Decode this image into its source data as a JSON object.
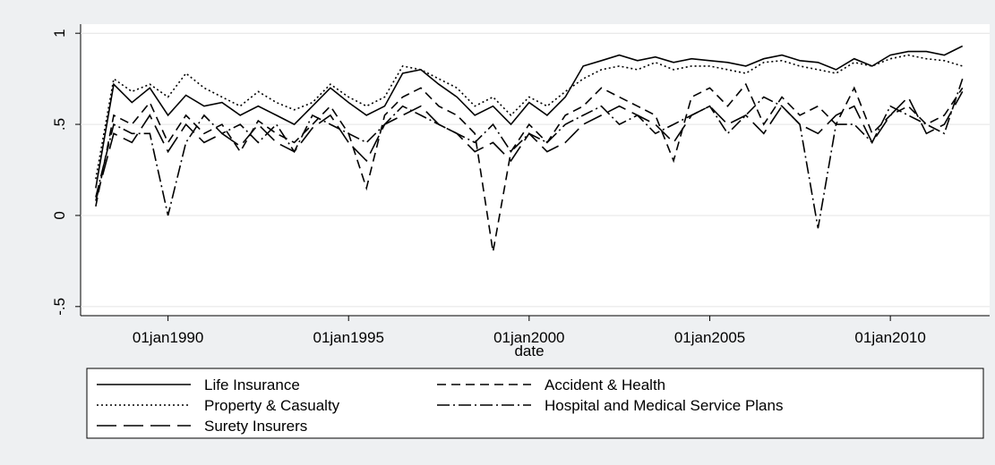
{
  "chart_data": {
    "type": "line",
    "xlabel": "date",
    "x": [
      "1988-01-01",
      "1988-07-01",
      "1989-01-01",
      "1989-07-01",
      "1990-01-01",
      "1990-07-01",
      "1991-01-01",
      "1991-07-01",
      "1992-01-01",
      "1992-07-01",
      "1993-01-01",
      "1993-07-01",
      "1994-01-01",
      "1994-07-01",
      "1995-01-01",
      "1995-07-01",
      "1996-01-01",
      "1996-07-01",
      "1997-01-01",
      "1997-07-01",
      "1998-01-01",
      "1998-07-01",
      "1999-01-01",
      "1999-07-01",
      "2000-01-01",
      "2000-07-01",
      "2001-01-01",
      "2001-07-01",
      "2002-01-01",
      "2002-07-01",
      "2003-01-01",
      "2003-07-01",
      "2004-01-01",
      "2004-07-01",
      "2005-01-01",
      "2005-07-01",
      "2006-01-01",
      "2006-07-01",
      "2007-01-01",
      "2007-07-01",
      "2008-01-01",
      "2008-07-01",
      "2009-01-01",
      "2009-07-01",
      "2010-01-01",
      "2010-07-01",
      "2011-01-01",
      "2011-07-01",
      "2012-01-01"
    ],
    "series": [
      {
        "name": "Life Insurance",
        "color": "#000000",
        "dash": "none",
        "values": [
          0.15,
          0.72,
          0.62,
          0.7,
          0.55,
          0.66,
          0.6,
          0.62,
          0.55,
          0.6,
          0.55,
          0.5,
          0.6,
          0.7,
          0.62,
          0.55,
          0.6,
          0.78,
          0.8,
          0.72,
          0.65,
          0.55,
          0.6,
          0.5,
          0.62,
          0.55,
          0.65,
          0.82,
          0.85,
          0.88,
          0.85,
          0.87,
          0.84,
          0.86,
          0.85,
          0.84,
          0.82,
          0.86,
          0.88,
          0.85,
          0.84,
          0.8,
          0.86,
          0.82,
          0.88,
          0.9,
          0.9,
          0.88,
          0.93
        ]
      },
      {
        "name": "Accident & Health",
        "color": "#000000",
        "dash": "10,6",
        "values": [
          0.05,
          0.55,
          0.5,
          0.62,
          0.4,
          0.55,
          0.45,
          0.5,
          0.35,
          0.52,
          0.45,
          0.4,
          0.5,
          0.6,
          0.45,
          0.15,
          0.55,
          0.65,
          0.7,
          0.6,
          0.55,
          0.45,
          -0.2,
          0.35,
          0.5,
          0.4,
          0.55,
          0.6,
          0.7,
          0.65,
          0.6,
          0.55,
          0.3,
          0.65,
          0.7,
          0.6,
          0.72,
          0.5,
          0.65,
          0.55,
          0.6,
          0.5,
          0.7,
          0.45,
          0.55,
          0.6,
          0.5,
          0.55,
          0.7
        ]
      },
      {
        "name": "Property & Casualty",
        "color": "#000000",
        "dash": "2,3",
        "values": [
          0.2,
          0.75,
          0.68,
          0.72,
          0.65,
          0.78,
          0.7,
          0.65,
          0.6,
          0.68,
          0.62,
          0.58,
          0.62,
          0.72,
          0.65,
          0.6,
          0.65,
          0.82,
          0.8,
          0.75,
          0.7,
          0.6,
          0.65,
          0.55,
          0.65,
          0.6,
          0.68,
          0.75,
          0.8,
          0.82,
          0.8,
          0.84,
          0.8,
          0.82,
          0.82,
          0.8,
          0.78,
          0.84,
          0.85,
          0.82,
          0.8,
          0.78,
          0.84,
          0.82,
          0.86,
          0.88,
          0.86,
          0.85,
          0.82
        ]
      },
      {
        "name": "Hospital and Medical Service Plans",
        "color": "#000000",
        "dash": "14,4,2,4",
        "values": [
          0.1,
          0.5,
          0.45,
          0.45,
          0.0,
          0.4,
          0.55,
          0.45,
          0.5,
          0.4,
          0.5,
          0.35,
          0.55,
          0.5,
          0.45,
          0.4,
          0.5,
          0.6,
          0.55,
          0.5,
          0.45,
          0.4,
          0.5,
          0.35,
          0.45,
          0.4,
          0.5,
          0.55,
          0.6,
          0.5,
          0.55,
          0.45,
          0.5,
          0.55,
          0.6,
          0.45,
          0.55,
          0.65,
          0.6,
          0.5,
          -0.07,
          0.5,
          0.5,
          0.4,
          0.6,
          0.55,
          0.5,
          0.45,
          0.75
        ]
      },
      {
        "name": "Surety Insurers",
        "color": "#000000",
        "dash": "22,8",
        "values": [
          0.08,
          0.45,
          0.4,
          0.55,
          0.35,
          0.5,
          0.4,
          0.45,
          0.38,
          0.5,
          0.4,
          0.35,
          0.48,
          0.55,
          0.4,
          0.3,
          0.5,
          0.55,
          0.6,
          0.5,
          0.45,
          0.35,
          0.4,
          0.3,
          0.45,
          0.35,
          0.4,
          0.5,
          0.55,
          0.6,
          0.55,
          0.5,
          0.4,
          0.55,
          0.6,
          0.5,
          0.55,
          0.45,
          0.6,
          0.5,
          0.45,
          0.55,
          0.6,
          0.4,
          0.55,
          0.65,
          0.45,
          0.5,
          0.68
        ]
      }
    ],
    "xlim": [
      "1987-08-01",
      "2012-10-01"
    ],
    "xticks": [
      {
        "value": "1990-01-01",
        "label": "01jan1990"
      },
      {
        "value": "1995-01-01",
        "label": "01jan1995"
      },
      {
        "value": "2000-01-01",
        "label": "01jan2000"
      },
      {
        "value": "2005-01-01",
        "label": "01jan2005"
      },
      {
        "value": "2010-01-01",
        "label": "01jan2010"
      }
    ],
    "ylim": [
      -0.55,
      1.05
    ],
    "yticks": [
      {
        "value": -0.5,
        "label": "-.5"
      },
      0,
      {
        "value": 0.5,
        "label": ".5"
      },
      1
    ],
    "grid": true
  }
}
